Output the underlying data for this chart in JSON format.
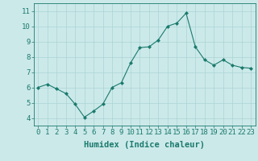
{
  "x": [
    0,
    1,
    2,
    3,
    4,
    5,
    6,
    7,
    8,
    9,
    10,
    11,
    12,
    13,
    14,
    15,
    16,
    17,
    18,
    19,
    20,
    21,
    22,
    23
  ],
  "y": [
    6.0,
    6.2,
    5.9,
    5.6,
    4.9,
    4.05,
    4.45,
    4.9,
    6.0,
    6.3,
    7.6,
    8.6,
    8.65,
    9.1,
    10.0,
    10.2,
    10.85,
    8.65,
    7.8,
    7.45,
    7.8,
    7.45,
    7.3,
    7.25
  ],
  "line_color": "#1a7a6e",
  "marker": "D",
  "marker_size": 2.0,
  "bg_color": "#cce9e9",
  "grid_color": "#aad4d4",
  "xlabel": "Humidex (Indice chaleur)",
  "ylim": [
    3.5,
    11.5
  ],
  "xlim": [
    -0.5,
    23.5
  ],
  "yticks": [
    4,
    5,
    6,
    7,
    8,
    9,
    10,
    11
  ],
  "xticks": [
    0,
    1,
    2,
    3,
    4,
    5,
    6,
    7,
    8,
    9,
    10,
    11,
    12,
    13,
    14,
    15,
    16,
    17,
    18,
    19,
    20,
    21,
    22,
    23
  ],
  "tick_color": "#1a7a6e",
  "label_color": "#1a7a6e",
  "font_size": 6.5,
  "xlabel_fontsize": 7.5,
  "linewidth": 0.8
}
